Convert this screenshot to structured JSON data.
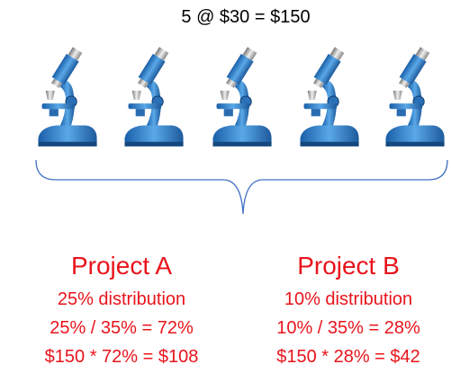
{
  "header": {
    "title": "5 @ $30 = $150"
  },
  "projects": [
    {
      "name": "Project A",
      "lines": [
        "25% distribution",
        "25% / 35% = 72%",
        "$150 * 72% = $108"
      ]
    },
    {
      "name": "Project B",
      "lines": [
        "10% distribution",
        "10% / 35% = 28%",
        "$150 * 28% = $42"
      ]
    }
  ]
}
